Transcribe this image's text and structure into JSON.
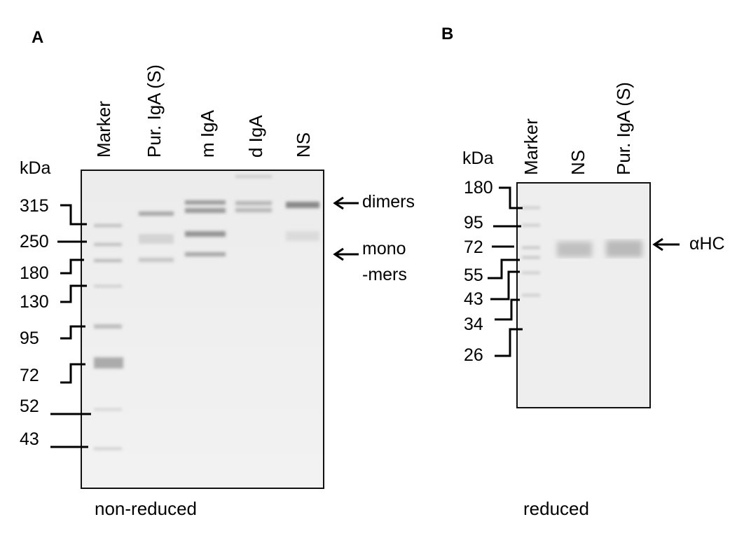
{
  "panels": [
    {
      "letter": "A",
      "unit": "kDa",
      "lanes": [
        "Marker",
        "Pur. IgA (S)",
        "m IgA",
        "d IgA",
        "NS"
      ],
      "markers": [
        "315",
        "250",
        "180",
        "130",
        "95",
        "72",
        "52",
        "43"
      ],
      "annotations": [
        "dimers",
        "mono",
        "-mers"
      ],
      "condition": "non-reduced"
    },
    {
      "letter": "B",
      "unit": "kDa",
      "lanes": [
        "Marker",
        "NS",
        "Pur. IgA (S)"
      ],
      "markers": [
        "180",
        "95",
        "72",
        "55",
        "43",
        "34",
        "26"
      ],
      "annotations": [
        "αHC"
      ],
      "condition": "reduced"
    }
  ]
}
